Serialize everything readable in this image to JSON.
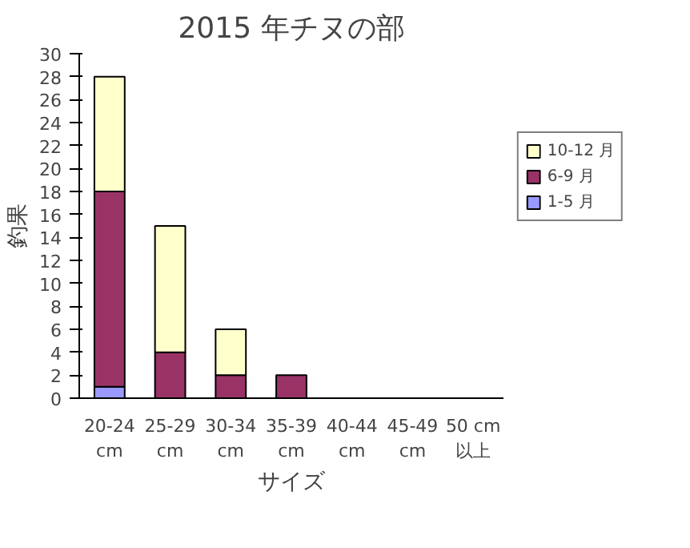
{
  "chart_data": {
    "type": "bar",
    "title": "2015 年チヌの部",
    "xlabel": "サイズ",
    "ylabel": "釣果",
    "categories": [
      "20-24\ncm",
      "25-29\ncm",
      "30-34\ncm",
      "35-39\ncm",
      "40-44\ncm",
      "45-49\ncm",
      "50 cm\n以上"
    ],
    "stacked": true,
    "series": [
      {
        "name": "1-5 月",
        "color": "#9999ff",
        "values": [
          1,
          0,
          0,
          0,
          0,
          0,
          0
        ]
      },
      {
        "name": "6-9 月",
        "color": "#993366",
        "values": [
          17,
          4,
          2,
          2,
          0,
          0,
          0
        ]
      },
      {
        "name": "10-12 月",
        "color": "#ffffcc",
        "values": [
          10,
          11,
          4,
          0,
          0,
          0,
          0
        ]
      }
    ],
    "ylim": [
      0,
      30
    ],
    "yticks": [
      0,
      2,
      4,
      6,
      8,
      10,
      12,
      14,
      16,
      18,
      20,
      22,
      24,
      26,
      28,
      30
    ],
    "grid": false,
    "legend": "right"
  }
}
